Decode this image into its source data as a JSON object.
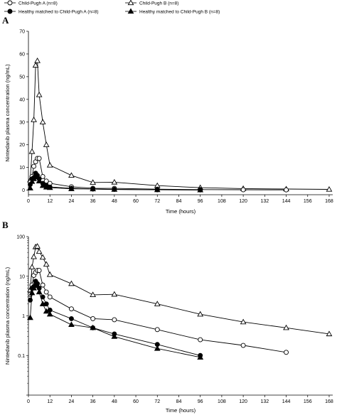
{
  "figure": {
    "panels": [
      "A",
      "B"
    ],
    "legend": [
      {
        "label": "Child-Pugh A (n=8)",
        "marker": "circle",
        "fill": "open"
      },
      {
        "label": "Child-Pugh B (n=8)",
        "marker": "triangle",
        "fill": "open"
      },
      {
        "label": "Healthy matched to Child-Pugh A (n=8)",
        "marker": "circle",
        "fill": "filled"
      },
      {
        "label": "Healthy matched to Child-Pugh B (n=8)",
        "marker": "triangle",
        "fill": "filled"
      }
    ]
  },
  "chart_data": [
    {
      "panel": "A",
      "type": "line",
      "xlabel": "Time (hours)",
      "ylabel": "Nintedanib plasma concentration (ng/mL)",
      "xlim": [
        0,
        170
      ],
      "ylim": [
        -2,
        70
      ],
      "yscale": "linear",
      "xticks": [
        0,
        12,
        24,
        36,
        48,
        60,
        72,
        84,
        96,
        108,
        120,
        132,
        144,
        156,
        168
      ],
      "yticks": [
        0,
        10,
        20,
        30,
        40,
        50,
        60,
        70
      ],
      "series": [
        {
          "name": "Child-Pugh B (n=8)",
          "marker": "triangle",
          "fill": "open",
          "x": [
            1,
            2,
            3,
            4,
            5,
            6,
            8,
            10,
            12,
            24,
            36,
            48,
            72,
            96,
            120,
            144,
            168
          ],
          "y": [
            4.5,
            17,
            31,
            55,
            57,
            42,
            30,
            20,
            11,
            6.5,
            3.4,
            3.5,
            2,
            1.1,
            0.7,
            0.5,
            0.35
          ]
        },
        {
          "name": "Child-Pugh A (n=8)",
          "marker": "circle",
          "fill": "open",
          "x": [
            1,
            2,
            3,
            4,
            5,
            6,
            8,
            10,
            12,
            24,
            36,
            48,
            72,
            96,
            120,
            144
          ],
          "y": [
            3.5,
            6,
            10.5,
            12.5,
            14,
            14,
            6,
            4,
            3,
            1.5,
            0.85,
            0.8,
            0.45,
            0.25,
            0.18,
            0.12
          ]
        },
        {
          "name": "Healthy matched to Child-Pugh A (n=8)",
          "marker": "circle",
          "fill": "filled",
          "x": [
            1,
            2,
            3,
            4,
            5,
            6,
            8,
            10,
            12,
            24,
            36,
            48,
            72,
            96
          ],
          "y": [
            2.5,
            5,
            5.5,
            7.5,
            6.5,
            5,
            3,
            2,
            1.4,
            0.85,
            0.5,
            0.35,
            0.19,
            0.1
          ]
        },
        {
          "name": "Healthy matched to Child-Pugh B (n=8)",
          "marker": "triangle",
          "fill": "filled",
          "x": [
            1,
            2,
            3,
            4,
            5,
            6,
            8,
            10,
            12,
            24,
            36,
            48,
            72,
            96
          ],
          "y": [
            0.9,
            3.8,
            5,
            6.5,
            5.8,
            4,
            2,
            1.3,
            1.1,
            0.6,
            0.5,
            0.3,
            0.15,
            0.09
          ]
        }
      ]
    },
    {
      "panel": "B",
      "type": "line",
      "xlabel": "Time (hours)",
      "ylabel": "Nintedanib plasma concentration (ng/mL)",
      "xlim": [
        0,
        170
      ],
      "ylim": [
        0.01,
        100
      ],
      "yscale": "log",
      "xticks": [
        0,
        12,
        24,
        36,
        48,
        60,
        72,
        84,
        96,
        108,
        120,
        132,
        144,
        156,
        168
      ],
      "yticks": [
        0.01,
        0.1,
        1,
        10,
        100
      ],
      "yticklabels": [
        "",
        "0.1",
        "1",
        "10",
        "100"
      ],
      "series": [
        {
          "name": "Child-Pugh B (n=8)",
          "marker": "triangle",
          "fill": "open",
          "x": [
            1,
            2,
            3,
            4,
            5,
            6,
            8,
            10,
            12,
            24,
            36,
            48,
            72,
            96,
            120,
            144,
            168
          ],
          "y": [
            4.5,
            17,
            31,
            55,
            57,
            42,
            30,
            20,
            11,
            6.5,
            3.4,
            3.5,
            2,
            1.1,
            0.7,
            0.5,
            0.35
          ]
        },
        {
          "name": "Child-Pugh A (n=8)",
          "marker": "circle",
          "fill": "open",
          "x": [
            1,
            2,
            3,
            4,
            5,
            6,
            8,
            10,
            12,
            24,
            36,
            48,
            72,
            96,
            120,
            144
          ],
          "y": [
            3.5,
            6,
            10.5,
            12.5,
            14,
            14,
            6,
            4,
            3,
            1.5,
            0.85,
            0.8,
            0.45,
            0.25,
            0.18,
            0.12
          ]
        },
        {
          "name": "Healthy matched to Child-Pugh A (n=8)",
          "marker": "circle",
          "fill": "filled",
          "x": [
            1,
            2,
            3,
            4,
            5,
            6,
            8,
            10,
            12,
            24,
            36,
            48,
            72,
            96
          ],
          "y": [
            2.5,
            5,
            5.5,
            7.5,
            6.5,
            5,
            3,
            2,
            1.4,
            0.85,
            0.5,
            0.35,
            0.19,
            0.1
          ]
        },
        {
          "name": "Healthy matched to Child-Pugh B (n=8)",
          "marker": "triangle",
          "fill": "filled",
          "x": [
            1,
            2,
            3,
            4,
            5,
            6,
            8,
            10,
            12,
            24,
            36,
            48,
            72,
            96
          ],
          "y": [
            0.9,
            3.8,
            5,
            6.5,
            5.8,
            4,
            2,
            1.3,
            1.1,
            0.6,
            0.5,
            0.3,
            0.15,
            0.09
          ]
        }
      ]
    }
  ]
}
